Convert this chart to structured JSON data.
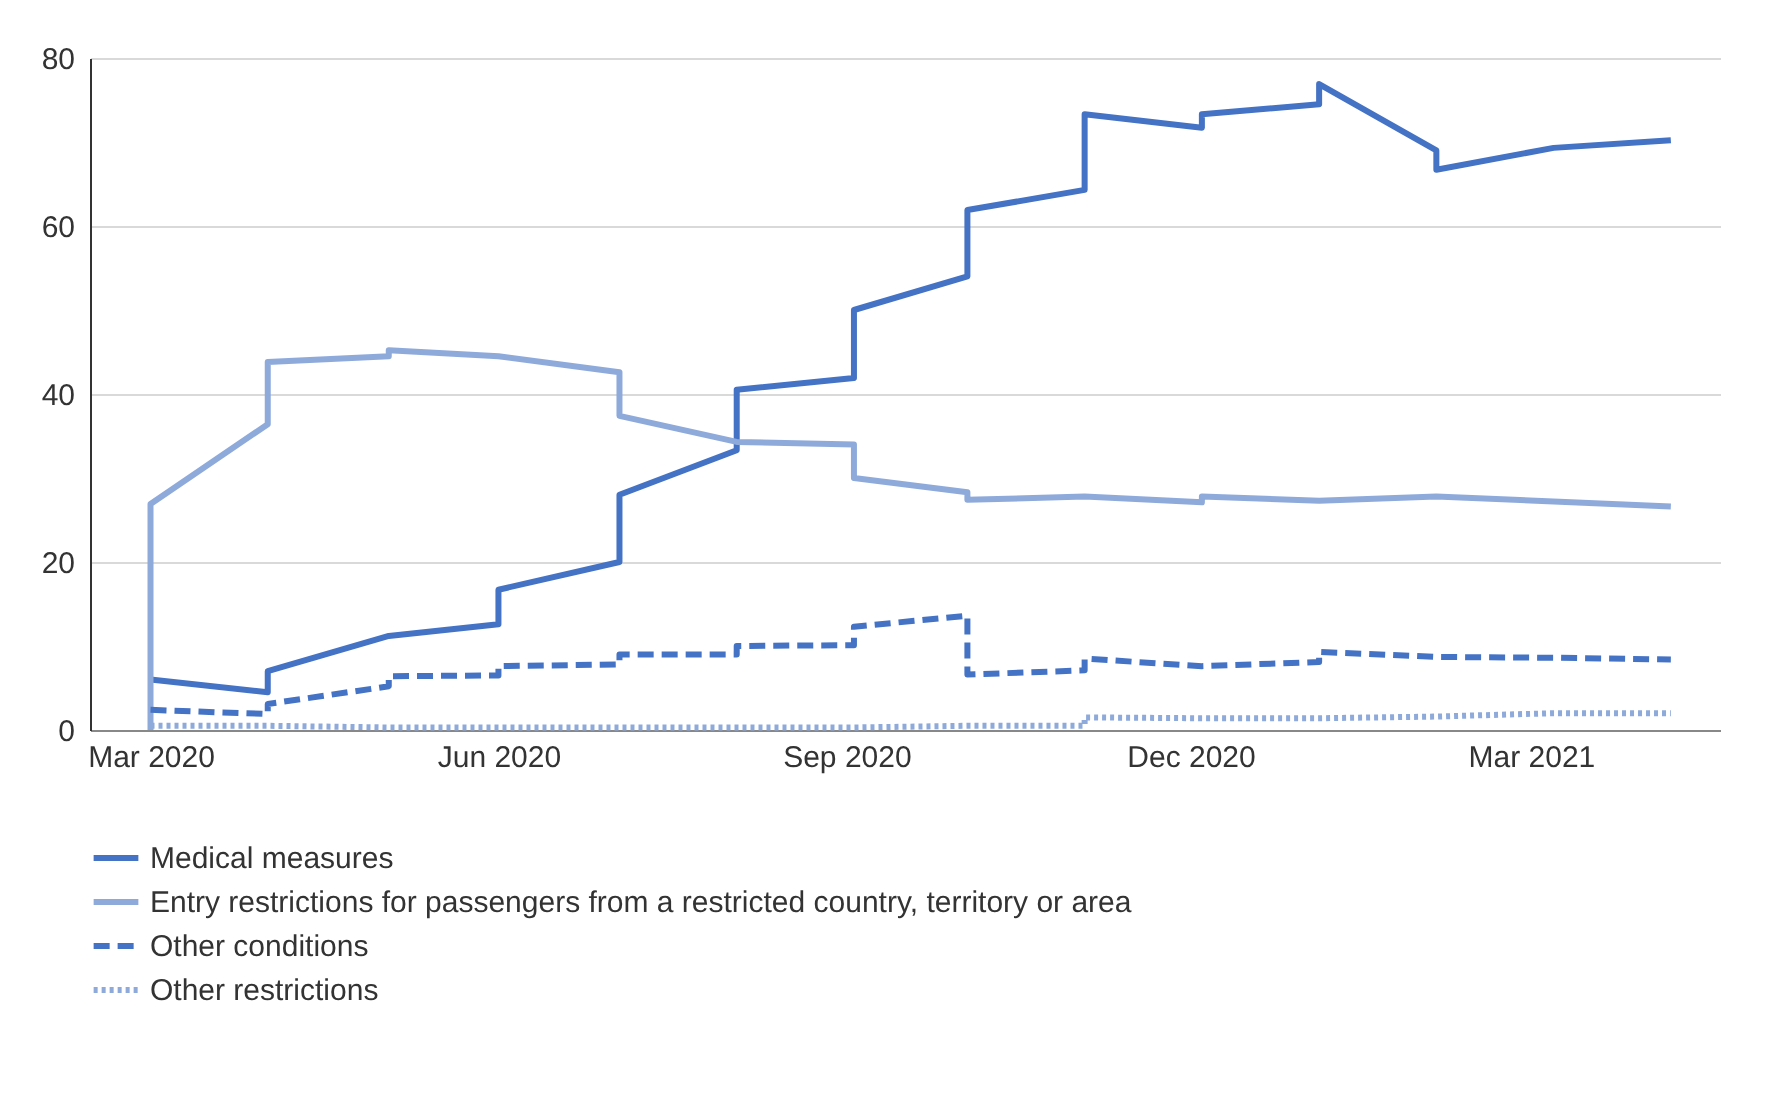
{
  "chart_data": {
    "type": "line",
    "xlim": [
      "2020-02-14",
      "2021-04-20"
    ],
    "xticks": [
      {
        "value": "2020-03-01",
        "label": "Mar 2020"
      },
      {
        "value": "2020-06-01",
        "label": "Jun 2020"
      },
      {
        "value": "2020-09-01",
        "label": "Sep 2020"
      },
      {
        "value": "2020-12-01",
        "label": "Dec 2020"
      },
      {
        "value": "2021-03-01",
        "label": "Mar 2021"
      }
    ],
    "ylim": [
      0,
      80
    ],
    "yticks": [
      0,
      20,
      40,
      60,
      80
    ],
    "grid": "y",
    "legend": "bottom",
    "series": [
      {
        "name": "Medical measures",
        "color": "#4472c4",
        "line_style": "solid",
        "x": [
          "2020-03-01",
          "2020-04-01",
          "2020-04-01",
          "2020-05-03",
          "2020-06-01",
          "2020-06-01",
          "2020-07-03",
          "2020-07-03",
          "2020-08-03",
          "2020-08-03",
          "2020-09-03",
          "2020-09-03",
          "2020-10-03",
          "2020-10-03",
          "2020-11-03",
          "2020-11-03",
          "2020-12-04",
          "2020-12-04",
          "2021-01-04",
          "2021-01-04",
          "2021-02-04",
          "2021-02-04",
          "2021-03-07",
          "2021-04-07"
        ],
        "values": [
          6,
          4.5,
          7,
          11.2,
          12.6,
          16.7,
          20,
          28,
          33.3,
          40.5,
          41.9,
          50,
          54,
          61.9,
          64.3,
          73.3,
          71.7,
          73.3,
          74.5,
          76.9,
          69,
          66.7,
          69.3,
          70.2
        ]
      },
      {
        "name": "Entry restrictions for passengers from a restricted country, territory or area",
        "color": "#8eaadb",
        "line_style": "solid",
        "x": [
          "2020-03-01",
          "2020-03-01",
          "2020-04-01",
          "2020-04-01",
          "2020-05-03",
          "2020-05-03",
          "2020-06-01",
          "2020-07-03",
          "2020-07-03",
          "2020-08-03",
          "2020-09-03",
          "2020-09-03",
          "2020-10-03",
          "2020-10-03",
          "2020-11-03",
          "2020-12-04",
          "2020-12-04",
          "2021-01-04",
          "2021-02-04",
          "2021-03-07",
          "2021-04-07"
        ],
        "values": [
          0,
          26.9,
          36.4,
          43.8,
          44.5,
          45.2,
          44.5,
          42.6,
          37.4,
          34.3,
          34,
          30,
          28.3,
          27.4,
          27.8,
          27.1,
          27.8,
          27.3,
          27.8,
          27.2,
          26.6
        ]
      },
      {
        "name": "Other conditions",
        "color": "#4472c4",
        "line_style": "dashed",
        "x": [
          "2020-03-01",
          "2020-04-01",
          "2020-04-01",
          "2020-05-03",
          "2020-05-03",
          "2020-06-01",
          "2020-06-01",
          "2020-07-03",
          "2020-07-03",
          "2020-08-03",
          "2020-08-03",
          "2020-09-03",
          "2020-09-03",
          "2020-10-03",
          "2020-10-03",
          "2020-11-03",
          "2020-11-03",
          "2020-12-04",
          "2021-01-04",
          "2021-01-04",
          "2021-02-04",
          "2021-03-07",
          "2021-04-07"
        ],
        "values": [
          2.4,
          1.9,
          3.1,
          5.2,
          6.4,
          6.5,
          7.6,
          7.8,
          9,
          9,
          10,
          10.1,
          12.3,
          13.6,
          6.6,
          7.1,
          8.5,
          7.6,
          8.1,
          9.3,
          8.7,
          8.6,
          8.4
        ]
      },
      {
        "name": "Other restrictions",
        "color": "#8eaadb",
        "line_style": "dotted",
        "x": [
          "2020-03-01",
          "2020-04-01",
          "2020-05-03",
          "2020-06-01",
          "2020-07-03",
          "2020-08-03",
          "2020-09-03",
          "2020-10-03",
          "2020-11-03",
          "2020-11-03",
          "2020-12-04",
          "2021-01-04",
          "2021-02-04",
          "2021-03-07",
          "2021-04-07"
        ],
        "values": [
          0.5,
          0.5,
          0.3,
          0.3,
          0.3,
          0.3,
          0.3,
          0.5,
          0.5,
          1.5,
          1.4,
          1.4,
          1.6,
          2,
          2
        ]
      }
    ]
  }
}
